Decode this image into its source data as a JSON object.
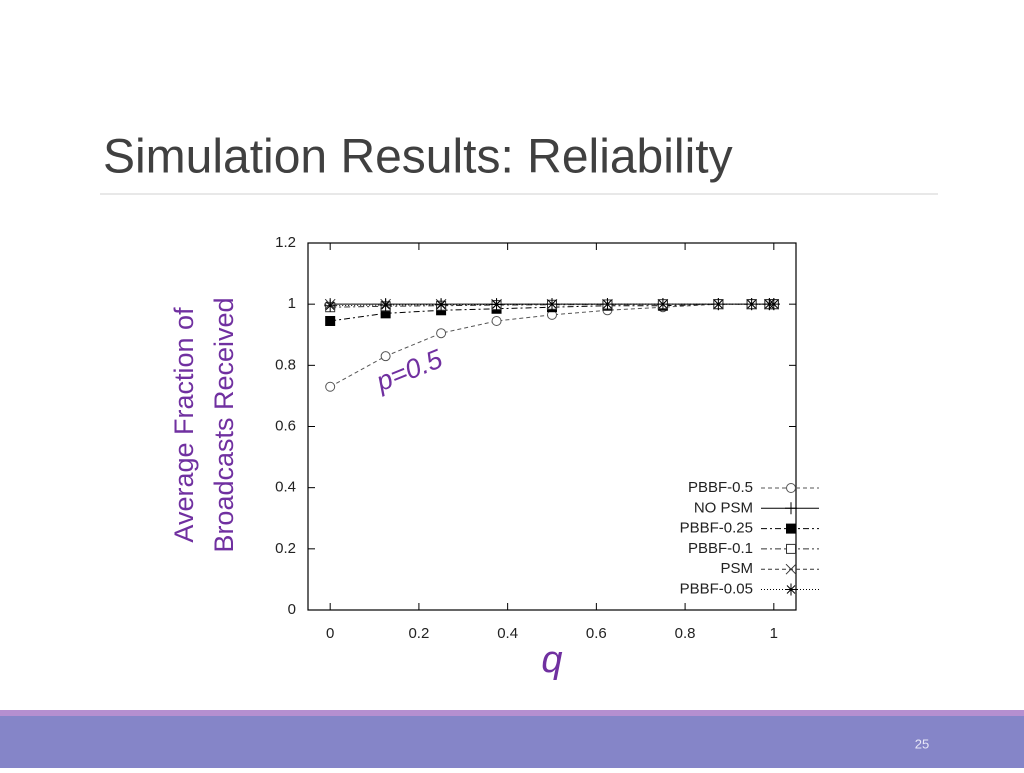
{
  "slide": {
    "title": "Simulation Results: Reliability",
    "page_number": "25"
  },
  "chart_data": {
    "type": "line",
    "ylabel": [
      "Average Fraction of",
      "Broadcasts Received"
    ],
    "xlabel": "q",
    "annotation": "p=0.5",
    "x": [
      0,
      0.125,
      0.25,
      0.375,
      0.5,
      0.625,
      0.75,
      0.875,
      0.95,
      0.99,
      1
    ],
    "xlim": [
      -0.05,
      1.05
    ],
    "ylim": [
      0,
      1.2
    ],
    "xticks": [
      0,
      0.2,
      0.4,
      0.6,
      0.8,
      1
    ],
    "yticks": [
      0,
      0.2,
      0.4,
      0.6,
      0.8,
      1,
      1.2
    ],
    "legend": "lower right",
    "series": [
      {
        "name": "PBBF-0.5",
        "color": "#555555",
        "marker": "circle",
        "dash": "4,3",
        "values": [
          0.73,
          0.83,
          0.905,
          0.945,
          0.965,
          0.98,
          0.99,
          1,
          1,
          1,
          1
        ]
      },
      {
        "name": "NO PSM",
        "color": "#000000",
        "marker": "plus",
        "dash": "none",
        "values": [
          1,
          1,
          1,
          1,
          1,
          1,
          1,
          1,
          1,
          1,
          1
        ]
      },
      {
        "name": "PBBF-0.25",
        "color": "#000000",
        "marker": "filled-square",
        "dash": "6,3,2,3",
        "values": [
          0.945,
          0.97,
          0.98,
          0.985,
          0.99,
          0.995,
          0.995,
          1,
          1,
          1,
          1
        ]
      },
      {
        "name": "PBBF-0.1",
        "color": "#333333",
        "marker": "square",
        "dash": "6,3,2,3",
        "values": [
          0.99,
          0.993,
          0.995,
          0.997,
          0.998,
          0.999,
          1,
          1,
          1,
          1,
          1
        ]
      },
      {
        "name": "PSM",
        "color": "#333333",
        "marker": "cross",
        "dash": "4,3",
        "values": [
          1,
          1,
          1,
          1,
          1,
          1,
          1,
          1,
          1,
          1,
          1
        ]
      },
      {
        "name": "PBBF-0.05",
        "color": "#000000",
        "marker": "star",
        "dash": "1,2",
        "values": [
          0.995,
          0.997,
          0.998,
          0.999,
          1,
          1,
          1,
          1,
          1,
          1,
          1
        ]
      }
    ]
  }
}
